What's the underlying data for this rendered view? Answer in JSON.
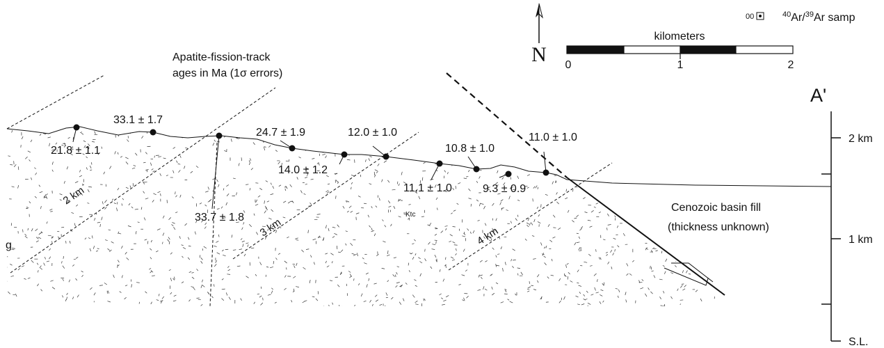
{
  "title_lines": [
    "Apatite-fission-track",
    "ages in Ma (1σ errors)"
  ],
  "legend": {
    "prefix": "00",
    "parts": [
      "40",
      "Ar/",
      "39",
      "Ar samp"
    ]
  },
  "north": "N",
  "scale": {
    "title": "kilometers",
    "ticks": [
      "0",
      "1",
      "2"
    ]
  },
  "section_label": "A'",
  "elevation_ticks": [
    "2 km",
    "1 km",
    "S.L."
  ],
  "samples": [
    {
      "label": "21.8 ± 1.1"
    },
    {
      "label": "33.1 ± 1.7"
    },
    {
      "label": "33.7 ± 1.8"
    },
    {
      "label": "24.7 ± 1.9"
    },
    {
      "label": "14.0 ± 1.2"
    },
    {
      "label": "12.0 ± 1.0"
    },
    {
      "label": "11.1 ± 1.0"
    },
    {
      "label": "10.8 ± 1.0"
    },
    {
      "label": "9.3 ± 0.9"
    },
    {
      "label": "11.0 ± 1.0"
    }
  ],
  "contours": [
    "2 km",
    "3 km",
    "4 km"
  ],
  "unit": "Ktc",
  "basin_label": [
    "Cenozoic basin fill",
    "(thickness unknown)"
  ],
  "edge_label": "g"
}
